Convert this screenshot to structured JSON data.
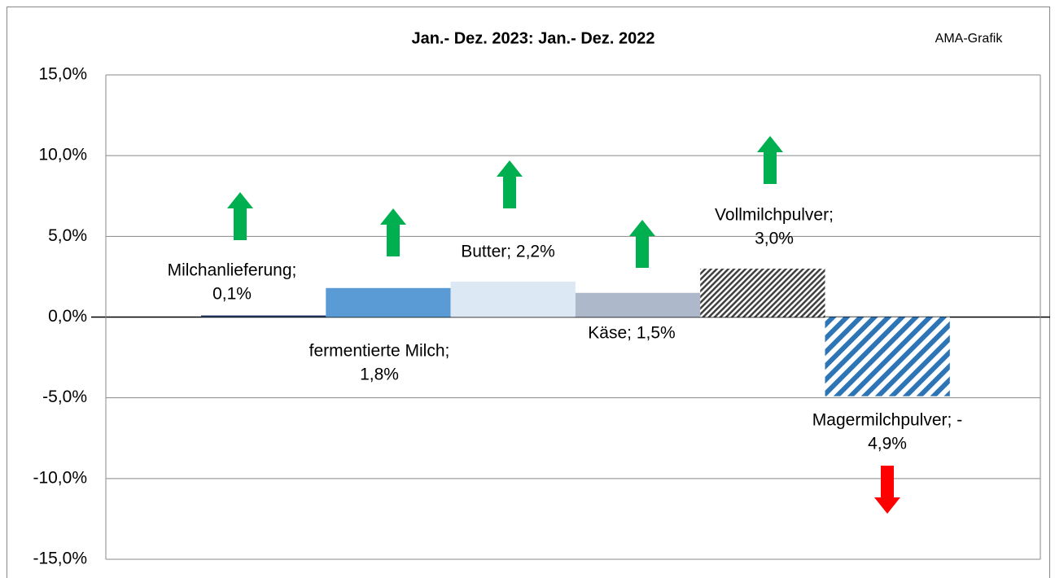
{
  "chart_data": {
    "type": "bar",
    "title": "Jan.- Dez. 2023: Jan.- Dez. 2022",
    "annotation": "AMA-Grafik",
    "values": [
      0.1,
      1.8,
      2.2,
      1.5,
      3.0,
      -4.9
    ],
    "value_labels": [
      [
        "Milchanlieferung;",
        "0,1%"
      ],
      [
        "fermentierte Milch;",
        "1,8%"
      ],
      [
        "Butter; 2,2%"
      ],
      [
        "Käse; 1,5%"
      ],
      [
        "Vollmilchpulver;",
        "3,0%"
      ],
      [
        "Magermilchpulver; -",
        "4,9%"
      ]
    ],
    "colors": [
      "#203864",
      "#5b9bd5",
      "#dde8f5",
      "#adb9ca",
      "#404040",
      "#2e75b6"
    ],
    "patterns": [
      null,
      null,
      null,
      null,
      "fine-hatch",
      "wide-stripe"
    ],
    "ylim": [
      -15,
      15
    ],
    "yticks": [
      {
        "value": -15,
        "label": "-15,0%"
      },
      {
        "value": -10,
        "label": "-10,0%"
      },
      {
        "value": -5,
        "label": "-5,0%"
      },
      {
        "value": 0,
        "label": "0,0%"
      },
      {
        "value": 5,
        "label": "5,0%"
      },
      {
        "value": 10,
        "label": "10,0%"
      },
      {
        "value": 15,
        "label": "15,0%"
      }
    ],
    "grid": true
  }
}
